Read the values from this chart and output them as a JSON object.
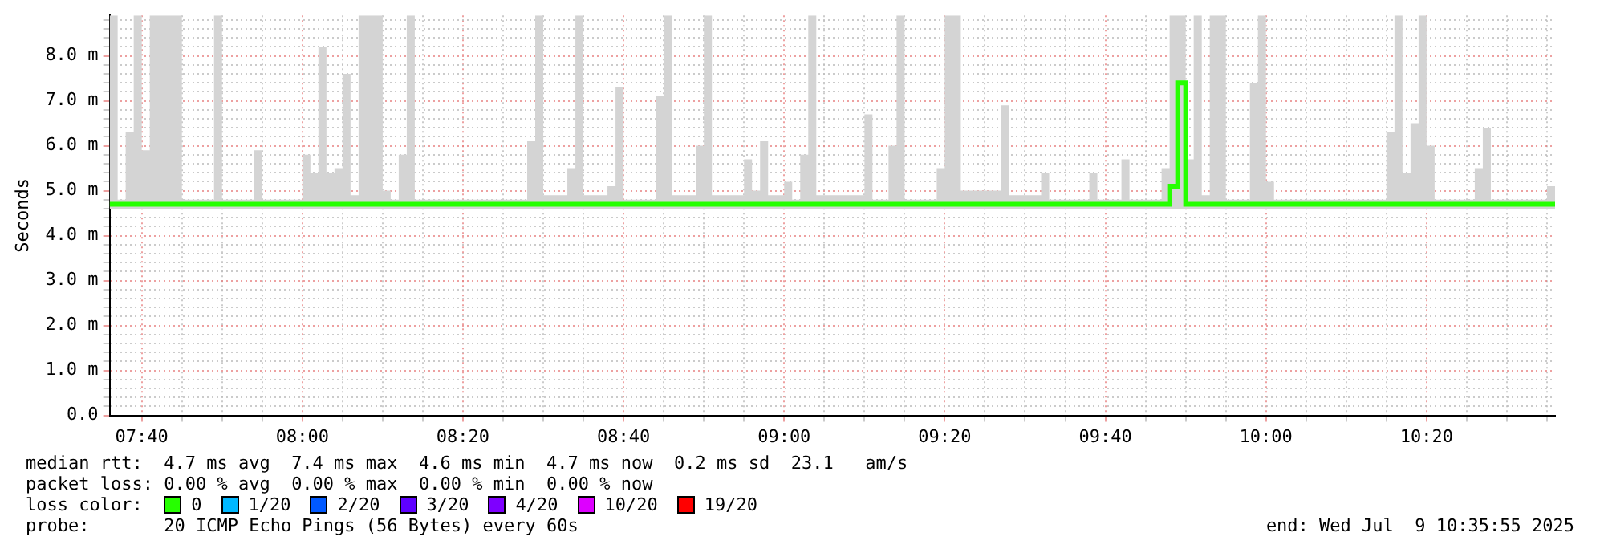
{
  "chart_data": {
    "type": "step",
    "ylabel": "Seconds",
    "xlim": [
      7.6,
      10.6
    ],
    "xticks": [
      {
        "value": 7.6667,
        "label": "07:40"
      },
      {
        "value": 7.75,
        "label": null
      },
      {
        "value": 7.8333,
        "label": null
      },
      {
        "value": 7.9167,
        "label": null
      },
      {
        "value": 8,
        "label": "08:00"
      },
      {
        "value": 8.0833,
        "label": null
      },
      {
        "value": 8.1667,
        "label": null
      },
      {
        "value": 8.25,
        "label": null
      },
      {
        "value": 8.3333,
        "label": "08:20"
      },
      {
        "value": 8.4167,
        "label": null
      },
      {
        "value": 8.5,
        "label": null
      },
      {
        "value": 8.5833,
        "label": null
      },
      {
        "value": 8.6667,
        "label": "08:40"
      },
      {
        "value": 8.75,
        "label": null
      },
      {
        "value": 8.8333,
        "label": null
      },
      {
        "value": 8.9167,
        "label": null
      },
      {
        "value": 9,
        "label": "09:00"
      },
      {
        "value": 9.0833,
        "label": null
      },
      {
        "value": 9.1667,
        "label": null
      },
      {
        "value": 9.25,
        "label": null
      },
      {
        "value": 9.3333,
        "label": "09:20"
      },
      {
        "value": 9.4167,
        "label": null
      },
      {
        "value": 9.5,
        "label": null
      },
      {
        "value": 9.5833,
        "label": null
      },
      {
        "value": 9.6667,
        "label": "09:40"
      },
      {
        "value": 9.75,
        "label": null
      },
      {
        "value": 9.8333,
        "label": null
      },
      {
        "value": 9.9167,
        "label": null
      },
      {
        "value": 10,
        "label": "10:00"
      },
      {
        "value": 10.0833,
        "label": null
      },
      {
        "value": 10.1667,
        "label": null
      },
      {
        "value": 10.25,
        "label": null
      },
      {
        "value": 10.3333,
        "label": "10:20"
      },
      {
        "value": 10.4167,
        "label": null
      },
      {
        "value": 10.5,
        "label": null
      },
      {
        "value": 10.5833,
        "label": null
      }
    ],
    "ylim": [
      0,
      8.9
    ],
    "yticks": [
      {
        "value": 0,
        "label": "0.0"
      },
      {
        "value": 0.2,
        "label": null
      },
      {
        "value": 0.4,
        "label": null
      },
      {
        "value": 0.6,
        "label": null
      },
      {
        "value": 0.8,
        "label": null
      },
      {
        "value": 1,
        "label": "1.0 m"
      },
      {
        "value": 1.2,
        "label": null
      },
      {
        "value": 1.4,
        "label": null
      },
      {
        "value": 1.6,
        "label": null
      },
      {
        "value": 1.8,
        "label": null
      },
      {
        "value": 2,
        "label": "2.0 m"
      },
      {
        "value": 2.2,
        "label": null
      },
      {
        "value": 2.4,
        "label": null
      },
      {
        "value": 2.6,
        "label": null
      },
      {
        "value": 2.8,
        "label": null
      },
      {
        "value": 3,
        "label": "3.0 m"
      },
      {
        "value": 3.2,
        "label": null
      },
      {
        "value": 3.4,
        "label": null
      },
      {
        "value": 3.6,
        "label": null
      },
      {
        "value": 3.8,
        "label": null
      },
      {
        "value": 4,
        "label": "4.0 m"
      },
      {
        "value": 4.2,
        "label": null
      },
      {
        "value": 4.4,
        "label": null
      },
      {
        "value": 4.6,
        "label": null
      },
      {
        "value": 4.8,
        "label": null
      },
      {
        "value": 5,
        "label": "5.0 m"
      },
      {
        "value": 5.2,
        "label": null
      },
      {
        "value": 5.4,
        "label": null
      },
      {
        "value": 5.6,
        "label": null
      },
      {
        "value": 5.8,
        "label": null
      },
      {
        "value": 6,
        "label": "6.0 m"
      },
      {
        "value": 6.2,
        "label": null
      },
      {
        "value": 6.4,
        "label": null
      },
      {
        "value": 6.6,
        "label": null
      },
      {
        "value": 6.8,
        "label": null
      },
      {
        "value": 7,
        "label": "7.0 m"
      },
      {
        "value": 7.2,
        "label": null
      },
      {
        "value": 7.4,
        "label": null
      },
      {
        "value": 7.6,
        "label": null
      },
      {
        "value": 7.8,
        "label": null
      },
      {
        "value": 8,
        "label": "8.0 m"
      },
      {
        "value": 8.2,
        "label": null
      },
      {
        "value": 8.4,
        "label": null
      },
      {
        "value": 8.6,
        "label": null
      },
      {
        "value": 8.8,
        "label": null
      }
    ],
    "grid": true,
    "legend": "bottom",
    "legend_title": "loss color:",
    "x": [
      7.6,
      7.6167,
      7.6333,
      7.65,
      7.6667,
      7.6833,
      7.75,
      7.8167,
      7.8333,
      7.9,
      7.9167,
      8,
      8.0167,
      8.0333,
      8.05,
      8.0667,
      8.0833,
      8.1,
      8.1167,
      8.1667,
      8.1833,
      8.2,
      8.2167,
      8.2333,
      8.4667,
      8.4833,
      8.5,
      8.55,
      8.5667,
      8.5833,
      8.6333,
      8.65,
      8.6667,
      8.7333,
      8.75,
      8.7667,
      8.8167,
      8.8333,
      8.85,
      8.9167,
      8.9333,
      8.95,
      8.9667,
      9,
      9.0167,
      9.0333,
      9.05,
      9.0667,
      9.1667,
      9.1833,
      9.2167,
      9.2333,
      9.25,
      9.3167,
      9.3333,
      9.3667,
      9.45,
      9.4667,
      9.5333,
      9.55,
      9.6333,
      9.65,
      9.7,
      9.7167,
      9.7833,
      9.8,
      9.8167,
      9.8333,
      9.85,
      9.8667,
      9.8833,
      9.9167,
      9.9667,
      9.9833,
      10,
      10.0167,
      10.25,
      10.2667,
      10.2833,
      10.3,
      10.3167,
      10.3333,
      10.35,
      10.4333,
      10.45,
      10.4667,
      10.5833,
      10.6
    ],
    "series": [
      {
        "name": "0",
        "color": "#26ff00",
        "values": [
          4.7,
          4.7,
          4.7,
          4.7,
          4.7,
          4.7,
          4.7,
          4.7,
          4.7,
          4.7,
          4.7,
          4.7,
          4.7,
          4.7,
          4.7,
          4.7,
          4.7,
          4.7,
          4.7,
          4.7,
          4.7,
          4.7,
          4.7,
          4.7,
          4.7,
          4.7,
          4.7,
          4.7,
          4.7,
          4.7,
          4.7,
          4.7,
          4.7,
          4.7,
          4.7,
          4.7,
          4.7,
          4.7,
          4.7,
          4.7,
          4.7,
          4.7,
          4.7,
          4.7,
          4.7,
          4.7,
          4.7,
          4.7,
          4.7,
          4.7,
          4.7,
          4.7,
          4.7,
          4.7,
          4.7,
          4.7,
          4.7,
          4.7,
          4.7,
          4.7,
          4.7,
          4.7,
          4.7,
          4.7,
          4.7,
          5.1,
          7.4,
          4.7,
          4.7,
          4.7,
          4.7,
          4.7,
          4.7,
          4.7,
          4.7,
          4.7,
          4.7,
          4.7,
          4.7,
          4.7,
          4.7,
          4.7,
          4.7,
          4.7,
          4.7,
          4.7,
          4.7,
          4.7
        ],
        "lower": [
          4.6,
          4.6,
          4.6,
          4.6,
          4.6,
          4.6,
          4.6,
          4.6,
          4.6,
          4.6,
          4.6,
          4.6,
          4.6,
          4.6,
          4.6,
          4.6,
          4.6,
          4.6,
          4.6,
          4.6,
          4.6,
          4.6,
          4.6,
          4.6,
          4.6,
          4.6,
          4.6,
          4.6,
          4.6,
          4.6,
          4.6,
          4.6,
          4.6,
          4.6,
          4.6,
          4.6,
          4.6,
          4.6,
          4.6,
          4.6,
          4.6,
          4.6,
          4.6,
          4.6,
          4.6,
          4.6,
          4.6,
          4.6,
          4.6,
          4.6,
          4.6,
          4.6,
          4.6,
          4.6,
          4.6,
          4.6,
          4.6,
          4.6,
          4.6,
          4.6,
          4.6,
          4.6,
          4.6,
          4.6,
          4.6,
          4.6,
          4.6,
          4.6,
          4.6,
          4.6,
          4.6,
          4.6,
          4.6,
          4.6,
          4.6,
          4.6,
          4.6,
          4.6,
          4.6,
          4.6,
          4.6,
          4.6,
          4.6,
          4.6,
          4.6,
          4.6,
          4.6,
          4.6
        ],
        "upper": [
          8.9,
          4.8,
          6.3,
          8.9,
          5.9,
          8.9,
          4.8,
          8.9,
          4.8,
          5.9,
          4.8,
          5.8,
          5.4,
          8.2,
          5.4,
          5.5,
          7.6,
          4.9,
          8.9,
          5,
          4.8,
          5.8,
          8.9,
          4.8,
          6.1,
          8.9,
          4.9,
          5.5,
          8.9,
          4.9,
          5.1,
          7.3,
          4.8,
          7.1,
          8.9,
          4.9,
          6,
          8.9,
          4.9,
          5.7,
          5,
          6.1,
          4.9,
          5.2,
          4.8,
          5.8,
          8.9,
          4.9,
          6.7,
          4.8,
          6,
          8.9,
          4.8,
          5.5,
          8.9,
          5,
          6.9,
          4.9,
          5.4,
          4.8,
          5.4,
          4.8,
          5.7,
          4.8,
          5.5,
          8.9,
          8.9,
          5.7,
          8.9,
          4.9,
          8.9,
          4.8,
          7.4,
          8.9,
          5.2,
          4.8,
          6.3,
          8.9,
          5.4,
          6.5,
          8.9,
          6,
          4.8,
          5.5,
          6.4,
          4.8,
          5.1,
          5.1
        ]
      },
      {
        "name": "1/20",
        "color": "#00b8ff",
        "values": [
          null,
          null,
          null,
          null,
          null,
          null,
          null,
          null,
          null,
          null,
          null,
          null,
          null,
          null,
          null,
          null,
          null,
          null,
          null,
          null,
          null,
          null,
          null,
          null,
          null,
          null,
          null,
          null,
          null,
          null,
          null,
          null,
          null,
          null,
          null,
          null,
          null,
          null,
          null,
          null,
          null,
          null,
          null,
          null,
          null,
          null,
          null,
          null,
          null,
          null,
          null,
          null,
          null,
          null,
          null,
          null,
          null,
          null,
          null,
          null,
          null,
          null,
          null,
          null,
          null,
          null,
          null,
          null,
          null,
          null,
          null,
          null,
          null,
          null,
          null,
          null,
          null,
          null,
          null,
          null,
          null,
          null,
          null,
          null,
          null,
          null,
          null,
          null
        ]
      },
      {
        "name": "2/20",
        "color": "#0059ff",
        "values": [
          null,
          null,
          null,
          null,
          null,
          null,
          null,
          null,
          null,
          null,
          null,
          null,
          null,
          null,
          null,
          null,
          null,
          null,
          null,
          null,
          null,
          null,
          null,
          null,
          null,
          null,
          null,
          null,
          null,
          null,
          null,
          null,
          null,
          null,
          null,
          null,
          null,
          null,
          null,
          null,
          null,
          null,
          null,
          null,
          null,
          null,
          null,
          null,
          null,
          null,
          null,
          null,
          null,
          null,
          null,
          null,
          null,
          null,
          null,
          null,
          null,
          null,
          null,
          null,
          null,
          null,
          null,
          null,
          null,
          null,
          null,
          null,
          null,
          null,
          null,
          null,
          null,
          null,
          null,
          null,
          null,
          null,
          null,
          null,
          null,
          null,
          null,
          null
        ]
      },
      {
        "name": "3/20",
        "color": "#5e00ff",
        "values": [
          null,
          null,
          null,
          null,
          null,
          null,
          null,
          null,
          null,
          null,
          null,
          null,
          null,
          null,
          null,
          null,
          null,
          null,
          null,
          null,
          null,
          null,
          null,
          null,
          null,
          null,
          null,
          null,
          null,
          null,
          null,
          null,
          null,
          null,
          null,
          null,
          null,
          null,
          null,
          null,
          null,
          null,
          null,
          null,
          null,
          null,
          null,
          null,
          null,
          null,
          null,
          null,
          null,
          null,
          null,
          null,
          null,
          null,
          null,
          null,
          null,
          null,
          null,
          null,
          null,
          null,
          null,
          null,
          null,
          null,
          null,
          null,
          null,
          null,
          null,
          null,
          null,
          null,
          null,
          null,
          null,
          null,
          null,
          null,
          null,
          null,
          null,
          null
        ]
      },
      {
        "name": "4/20",
        "color": "#7e00ff",
        "values": [
          null,
          null,
          null,
          null,
          null,
          null,
          null,
          null,
          null,
          null,
          null,
          null,
          null,
          null,
          null,
          null,
          null,
          null,
          null,
          null,
          null,
          null,
          null,
          null,
          null,
          null,
          null,
          null,
          null,
          null,
          null,
          null,
          null,
          null,
          null,
          null,
          null,
          null,
          null,
          null,
          null,
          null,
          null,
          null,
          null,
          null,
          null,
          null,
          null,
          null,
          null,
          null,
          null,
          null,
          null,
          null,
          null,
          null,
          null,
          null,
          null,
          null,
          null,
          null,
          null,
          null,
          null,
          null,
          null,
          null,
          null,
          null,
          null,
          null,
          null,
          null,
          null,
          null,
          null,
          null,
          null,
          null,
          null,
          null,
          null,
          null,
          null,
          null
        ]
      },
      {
        "name": "10/20",
        "color": "#dd00ff",
        "values": [
          null,
          null,
          null,
          null,
          null,
          null,
          null,
          null,
          null,
          null,
          null,
          null,
          null,
          null,
          null,
          null,
          null,
          null,
          null,
          null,
          null,
          null,
          null,
          null,
          null,
          null,
          null,
          null,
          null,
          null,
          null,
          null,
          null,
          null,
          null,
          null,
          null,
          null,
          null,
          null,
          null,
          null,
          null,
          null,
          null,
          null,
          null,
          null,
          null,
          null,
          null,
          null,
          null,
          null,
          null,
          null,
          null,
          null,
          null,
          null,
          null,
          null,
          null,
          null,
          null,
          null,
          null,
          null,
          null,
          null,
          null,
          null,
          null,
          null,
          null,
          null,
          null,
          null,
          null,
          null,
          null,
          null,
          null,
          null,
          null,
          null,
          null,
          null
        ]
      },
      {
        "name": "19/20",
        "color": "#ff0000",
        "values": [
          null,
          null,
          null,
          null,
          null,
          null,
          null,
          null,
          null,
          null,
          null,
          null,
          null,
          null,
          null,
          null,
          null,
          null,
          null,
          null,
          null,
          null,
          null,
          null,
          null,
          null,
          null,
          null,
          null,
          null,
          null,
          null,
          null,
          null,
          null,
          null,
          null,
          null,
          null,
          null,
          null,
          null,
          null,
          null,
          null,
          null,
          null,
          null,
          null,
          null,
          null,
          null,
          null,
          null,
          null,
          null,
          null,
          null,
          null,
          null,
          null,
          null,
          null,
          null,
          null,
          null,
          null,
          null,
          null,
          null,
          null,
          null,
          null,
          null,
          null,
          null,
          null,
          null,
          null,
          null,
          null,
          null,
          null,
          null,
          null,
          null,
          null,
          null
        ]
      }
    ],
    "annotations": [
      "median rtt:  4.7 ms avg  7.4 ms max  4.6 ms min  4.7 ms now  0.2 ms sd  23.1   am/s",
      "packet loss: 0.00 % avg  0.00 % max  0.00 % min  0.00 % now",
      "probe:       20 ICMP Echo Pings (56 Bytes) every 60s",
      "end: Wed Jul  9 10:35:55 2025"
    ]
  }
}
